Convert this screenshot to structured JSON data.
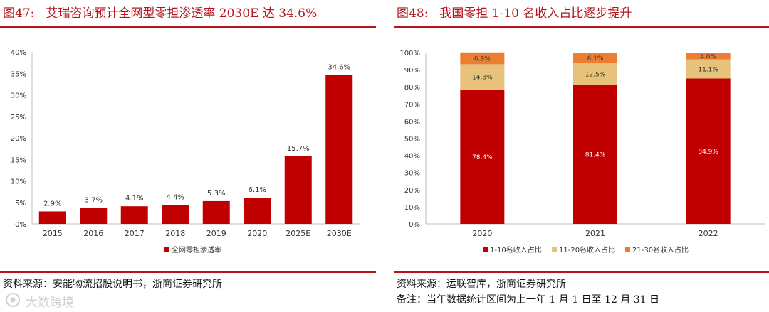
{
  "figures": [
    {
      "number": "图47:",
      "title": "艾瑞咨询预计全网型零担渗透率 2030E 达 34.6%",
      "source": "资料来源：安能物流招股说明书，浙商证券研究所"
    },
    {
      "number": "图48:",
      "title": "我国零担 1-10 名收入占比逐步提升",
      "source": "资料来源：运联智库，浙商证券研究所",
      "note": "备注：当年数据统计区间为上一年 1 月 1 日至 12 月 31 日"
    }
  ],
  "watermark": {
    "text": "大数跨境",
    "icon": "watermark-logo-icon"
  },
  "colors": {
    "accent": "#b7151d",
    "bar_red": "#c00000",
    "tan": "#e6c27a",
    "orange": "#ed7d31"
  },
  "chart_data": [
    {
      "type": "bar",
      "categories": [
        "2015",
        "2016",
        "2017",
        "2018",
        "2019",
        "2020",
        "2025E",
        "2030E"
      ],
      "series": [
        {
          "name": "全网零担渗透率",
          "values": [
            2.9,
            3.7,
            4.1,
            4.4,
            5.3,
            6.1,
            15.7,
            34.6
          ],
          "color": "#c00000"
        }
      ],
      "data_labels": [
        "2.9%",
        "3.7%",
        "4.1%",
        "4.4%",
        "5.3%",
        "6.1%",
        "15.7%",
        "34.6%"
      ],
      "ylim": [
        0,
        40
      ],
      "yticks": [
        "0%",
        "5%",
        "10%",
        "15%",
        "20%",
        "25%",
        "30%",
        "35%",
        "40%"
      ],
      "grid": false,
      "legend": "bottom"
    },
    {
      "type": "bar",
      "stacked": true,
      "categories": [
        "2020",
        "2021",
        "2022"
      ],
      "series": [
        {
          "name": "1-10名收入占比",
          "values": [
            78.4,
            81.4,
            84.9
          ],
          "labels": [
            "78.4%",
            "81.4%",
            "84.9%"
          ],
          "color": "#c00000"
        },
        {
          "name": "11-20名收入占比",
          "values": [
            14.8,
            12.5,
            11.1
          ],
          "labels": [
            "14.8%",
            "12.5%",
            "11.1%"
          ],
          "color": "#e6c27a"
        },
        {
          "name": "21-30名收入占比",
          "values": [
            6.9,
            6.1,
            4.0
          ],
          "labels": [
            "6.9%",
            "6.1%",
            "4.0%"
          ],
          "color": "#ed7d31"
        }
      ],
      "ylim": [
        0,
        100
      ],
      "yticks": [
        "0%",
        "10%",
        "20%",
        "30%",
        "40%",
        "50%",
        "60%",
        "70%",
        "80%",
        "90%",
        "100%"
      ],
      "grid": false,
      "legend": "bottom"
    }
  ]
}
